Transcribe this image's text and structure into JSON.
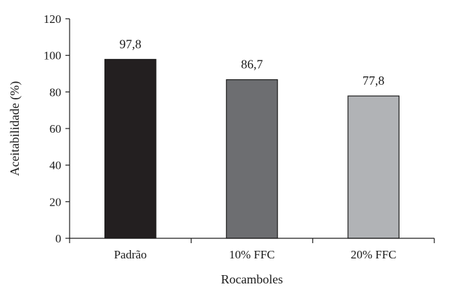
{
  "chart_data": {
    "type": "bar",
    "categories": [
      "Padrão",
      "10% FFC",
      "20% FFC"
    ],
    "values": [
      97.8,
      86.7,
      77.8
    ],
    "value_labels": [
      "97,8",
      "86,7",
      "77,8"
    ],
    "bar_colors": [
      "#231f20",
      "#6d6e71",
      "#b1b3b6"
    ],
    "title": "",
    "xlabel": "Rocamboles",
    "ylabel": "Aceitabilidade (%)",
    "ylim": [
      0,
      120
    ],
    "yticks": [
      0,
      20,
      40,
      60,
      80,
      100,
      120
    ],
    "grid": false,
    "legend": "none"
  }
}
